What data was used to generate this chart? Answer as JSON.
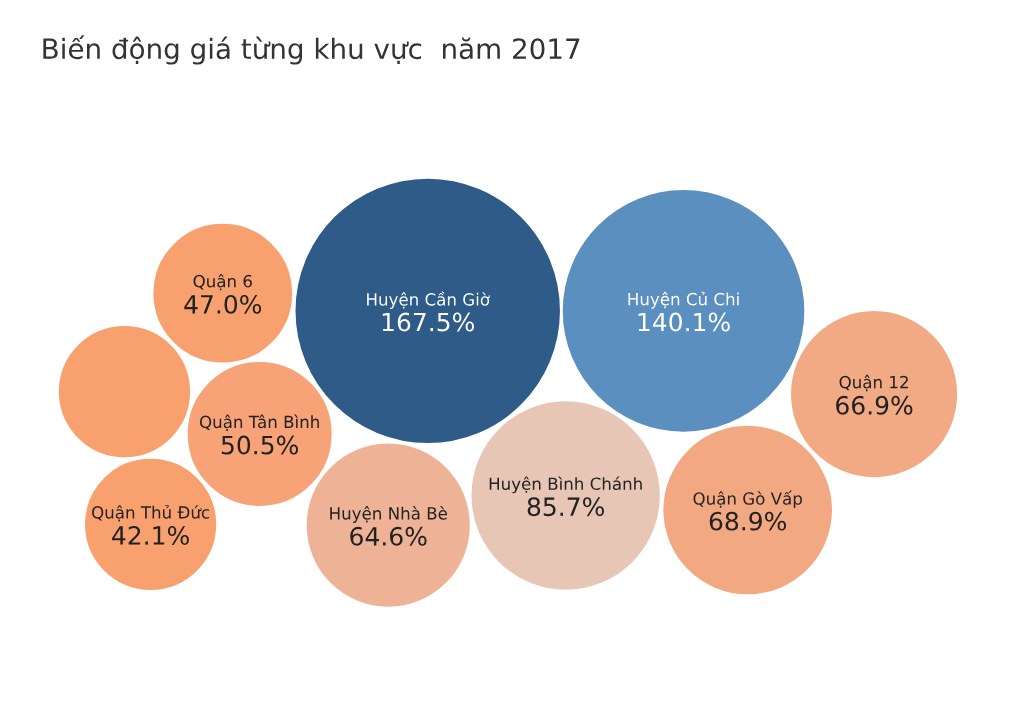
{
  "chart_data": {
    "type": "other",
    "title": "Biến động giá từng khu vực  năm 2017",
    "categories": [
      "Huyện Cần Giờ",
      "Huyện Củ Chi",
      "Huyện Bình Chánh",
      "Quận Gò Vấp",
      "Quận 12",
      "Huyện Nhà Bè",
      "Quận Tân Bình",
      "Quận 6",
      null,
      "Quận Thủ Đức"
    ],
    "values": [
      167.5,
      140.1,
      85.7,
      68.9,
      66.9,
      64.6,
      50.5,
      47.0,
      null,
      42.1
    ],
    "value_labels": [
      "167.5%",
      "140.1%",
      "85.7%",
      "68.9%",
      "66.9%",
      "64.6%",
      "50.5%",
      "47.0%",
      null,
      "42.1%"
    ],
    "colors": [
      "#2e5b88",
      "#5b8fbf",
      "#e8c6b6",
      "#f2a881",
      "#f2aa85",
      "#eeb397",
      "#f7a277",
      "#f9a06f",
      "#f9a06f",
      "#f9a06f"
    ]
  }
}
